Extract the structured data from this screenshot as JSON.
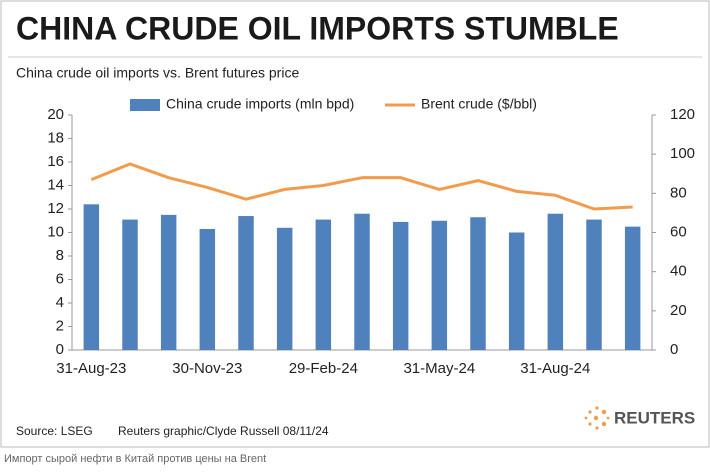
{
  "chart_data": {
    "type": "bar",
    "title": "CHINA CRUDE OIL IMPORTS STUMBLE",
    "subtitle": "China crude oil imports vs. Brent futures price",
    "categories": [
      "31-Aug-23",
      null,
      null,
      "30-Nov-23",
      null,
      null,
      "29-Feb-24",
      null,
      null,
      "31-May-24",
      null,
      null,
      "31-Aug-24",
      null,
      null
    ],
    "series": [
      {
        "name": "China crude imports (mln bpd)",
        "type": "bar",
        "color": "#4f81bd",
        "values": [
          12.4,
          11.1,
          11.5,
          10.3,
          11.4,
          10.4,
          11.1,
          11.6,
          10.9,
          11.0,
          11.3,
          10.0,
          11.6,
          11.1,
          10.5
        ]
      },
      {
        "name": "Brent crude ($/bbl)",
        "type": "line",
        "axis": "y2",
        "color": "#f39b4c",
        "values": [
          87,
          95,
          88,
          83,
          77,
          82,
          84,
          88,
          88,
          82,
          86.5,
          81,
          79,
          72,
          73
        ]
      }
    ],
    "ylim": [
      0,
      20
    ],
    "yticks": [
      0,
      2,
      4,
      6,
      8,
      10,
      12,
      14,
      16,
      18,
      20
    ],
    "y2lim": [
      0,
      120
    ],
    "y2ticks": [
      0,
      20,
      40,
      60,
      80,
      100,
      120
    ],
    "grid": false,
    "source": "Source: LSEG",
    "credit": "Reuters graphic/Clyde Russell 08/11/24",
    "logo": "REUTERS"
  },
  "caption": "Импорт сырой нефти в Китай против цены на Brent"
}
